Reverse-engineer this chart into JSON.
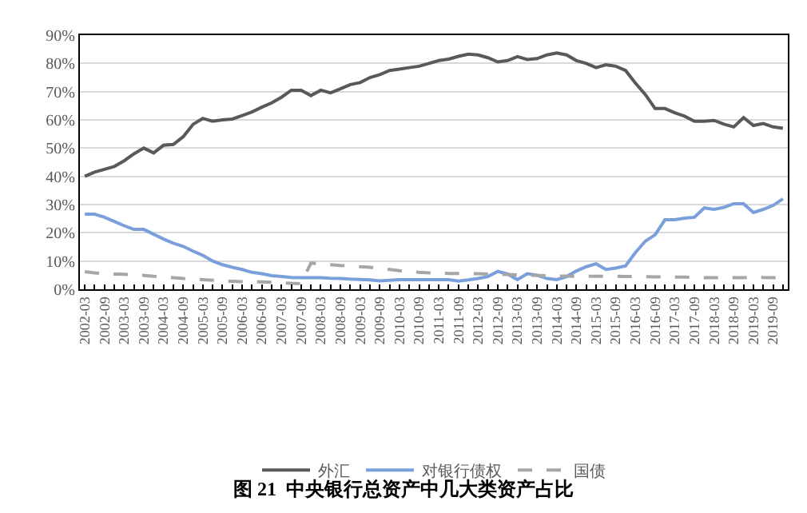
{
  "chart_data": {
    "type": "line",
    "title": "图 21  中央银行总资产中几大类资产占比",
    "categories": [
      "2002-03",
      null,
      "2002-09",
      null,
      "2003-03",
      null,
      "2003-09",
      null,
      "2004-03",
      null,
      "2004-09",
      null,
      "2005-03",
      null,
      "2005-09",
      null,
      "2006-03",
      null,
      "2006-09",
      null,
      "2007-03",
      null,
      "2007-09",
      null,
      "2008-03",
      null,
      "2008-09",
      null,
      "2009-03",
      null,
      "2009-09",
      null,
      "2010-03",
      null,
      "2010-09",
      null,
      "2011-03",
      null,
      "2011-09",
      null,
      "2012-03",
      null,
      "2012-09",
      null,
      "2013-03",
      null,
      "2013-09",
      null,
      "2014-03",
      null,
      "2014-09",
      null,
      "2015-03",
      null,
      "2015-09",
      null,
      "2016-03",
      null,
      "2016-09",
      null,
      "2017-03",
      null,
      "2017-09",
      null,
      "2018-03",
      null,
      "2018-09",
      null,
      "2019-03",
      null,
      "2019-09",
      null
    ],
    "series": [
      {
        "name": "外汇",
        "color": "#595959",
        "line_style": "solid",
        "values": [
          40,
          41.5,
          42.5,
          43.5,
          45.5,
          48,
          50,
          48.3,
          51,
          51.3,
          54,
          58.4,
          60.5,
          59.5,
          60,
          60.3,
          61.5,
          62.8,
          64.5,
          66,
          68,
          70.5,
          70.5,
          68.6,
          70.5,
          69.6,
          71,
          72.5,
          73.2,
          75,
          76,
          77.5,
          78,
          78.5,
          79,
          80,
          81,
          81.5,
          82.5,
          83.3,
          83,
          82,
          80.5,
          81,
          82.4,
          81.4,
          81.7,
          83,
          83.7,
          83,
          81,
          80,
          78.5,
          79.5,
          79,
          77.5,
          73,
          69,
          64,
          64,
          62.5,
          61.3,
          59.5,
          59.5,
          59.8,
          58.5,
          57.5,
          60.8,
          58,
          58.7,
          57.5,
          57
        ]
      },
      {
        "name": "对银行债权",
        "color": "#7a9fdb",
        "line_style": "solid",
        "values": [
          26.6,
          26.6,
          25.5,
          24,
          22.5,
          21.2,
          21.2,
          19.5,
          17.8,
          16.3,
          15.2,
          13.5,
          12,
          10,
          8.7,
          7.8,
          7,
          6,
          5.5,
          4.8,
          4.5,
          4.2,
          4.1,
          4.1,
          4.1,
          3.9,
          3.8,
          3.6,
          3.5,
          3.3,
          3,
          3.2,
          3.4,
          3.4,
          3.4,
          3.4,
          3.4,
          3.4,
          2.9,
          3.3,
          3.8,
          4.5,
          6.3,
          5.4,
          3.4,
          5.5,
          5,
          3.8,
          3.4,
          4.5,
          6.5,
          8,
          9,
          7,
          7.5,
          8.3,
          13,
          17,
          19.3,
          24.6,
          24.6,
          25.2,
          25.5,
          28.8,
          28.3,
          29,
          30.3,
          30.3,
          27.2,
          28.3,
          29.7,
          32
        ]
      },
      {
        "name": "国债",
        "color": "#a6a6a6",
        "line_style": "dashed",
        "values": [
          6.2,
          5.8,
          5.5,
          5.4,
          5.3,
          5.1,
          4.9,
          4.6,
          4.4,
          4.1,
          3.8,
          3.6,
          3.4,
          3.2,
          2.9,
          2.8,
          2.7,
          2.6,
          2.6,
          2.5,
          2.3,
          2.1,
          2,
          9.3,
          9,
          8.7,
          8.4,
          8.2,
          8,
          7.8,
          7.4,
          7,
          6.6,
          6.3,
          6,
          5.8,
          5.7,
          5.6,
          5.6,
          5.5,
          5.5,
          5.4,
          5.3,
          5.2,
          5.1,
          5,
          4.9,
          4.8,
          4.7,
          4.7,
          4.6,
          4.6,
          4.6,
          4.6,
          4.6,
          4.5,
          4.5,
          4.5,
          4.4,
          4.4,
          4.3,
          4.3,
          4.2,
          4.1,
          4.1,
          4.1,
          4.1,
          4.1,
          4.4,
          4.2,
          4.1,
          4.1
        ]
      }
    ],
    "ylim": [
      0,
      90
    ],
    "yticks": [
      {
        "value": 0,
        "label": "0%"
      },
      {
        "value": 10,
        "label": "10%"
      },
      {
        "value": 20,
        "label": "20%"
      },
      {
        "value": 30,
        "label": "30%"
      },
      {
        "value": 40,
        "label": "40%"
      },
      {
        "value": 50,
        "label": "50%"
      },
      {
        "value": 60,
        "label": "60%"
      },
      {
        "value": 70,
        "label": "70%"
      },
      {
        "value": 80,
        "label": "80%"
      },
      {
        "value": 90,
        "label": "90%"
      }
    ],
    "grid": "y",
    "legend": "bottom",
    "marker": "none"
  }
}
